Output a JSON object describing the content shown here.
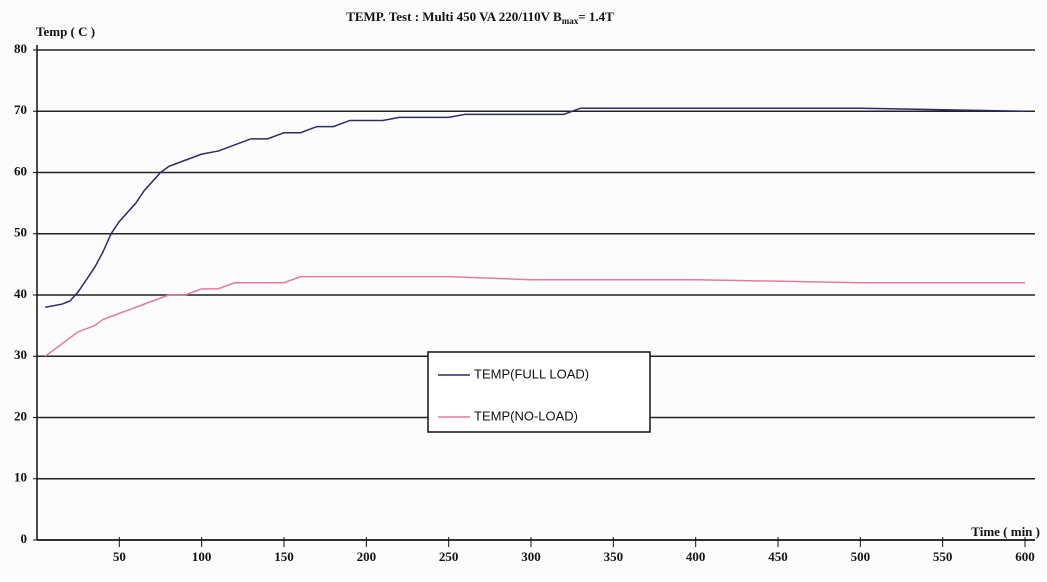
{
  "chart_data": {
    "type": "line",
    "title": {
      "text": "TEMP. Test : Multi 450 VA 220/110V B",
      "subscript": "max",
      "suffix": "= 1.4T"
    },
    "y_label": "Temp ( C )",
    "x_label": "Time ( min )",
    "xlim": [
      0,
      600
    ],
    "xticks": [
      50,
      100,
      150,
      200,
      250,
      300,
      350,
      400,
      450,
      500,
      550,
      600
    ],
    "ylim": [
      0,
      80
    ],
    "yticks": [
      0,
      10,
      20,
      30,
      40,
      50,
      60,
      70,
      80
    ],
    "grid": true,
    "series": [
      {
        "name": "TEMP(FULL LOAD)",
        "color": "#2b2a6b",
        "x": [
          5,
          15,
          20,
          25,
          30,
          35,
          40,
          45,
          50,
          55,
          60,
          65,
          70,
          75,
          80,
          90,
          100,
          110,
          120,
          130,
          140,
          150,
          160,
          170,
          180,
          190,
          200,
          210,
          220,
          240,
          250,
          260,
          300,
          320,
          330,
          400,
          500,
          600
        ],
        "values": [
          38,
          38.5,
          39,
          40.5,
          42.5,
          44.5,
          47,
          50,
          52,
          53.5,
          55,
          57,
          58.5,
          60,
          61,
          62,
          63,
          63.5,
          64.5,
          65.5,
          65.5,
          66.5,
          66.5,
          67.5,
          67.5,
          68.5,
          68.5,
          68.5,
          69,
          69,
          69,
          69.5,
          69.5,
          69.5,
          70.5,
          70.5,
          70.5,
          70
        ]
      },
      {
        "name": "TEMP(NO-LOAD)",
        "color": "#e27ba3",
        "x": [
          5,
          10,
          15,
          20,
          25,
          30,
          35,
          40,
          50,
          60,
          70,
          80,
          90,
          100,
          110,
          120,
          150,
          160,
          250,
          300,
          400,
          500,
          600
        ],
        "values": [
          30,
          31,
          32,
          33,
          34,
          34.5,
          35,
          36,
          37,
          38,
          39,
          40,
          40,
          41,
          41,
          42,
          42,
          43,
          43,
          42.5,
          42.5,
          42,
          42
        ]
      }
    ]
  }
}
